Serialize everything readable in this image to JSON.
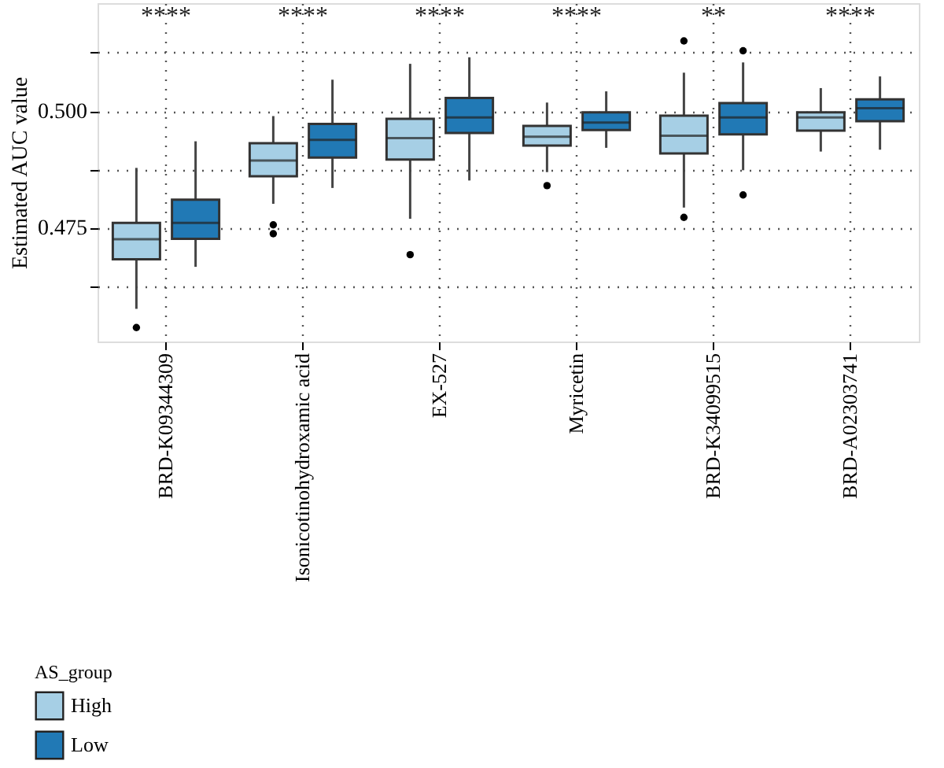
{
  "chart_data": {
    "type": "box",
    "ylabel": "Estimated AUC value",
    "legend_title": "AS_group",
    "categories": [
      "BRD-K09344309",
      "Isonicotinohydroxamic acid",
      "EX-527",
      "Myricetin",
      "BRD-K34099515",
      "BRD-A02303741"
    ],
    "series": [
      {
        "name": "High",
        "color": "#a6cfe5",
        "boxes": [
          {
            "low": 0.4576,
            "q1": 0.4682,
            "median": 0.4725,
            "q3": 0.476,
            "high": 0.4878,
            "outliers": [
              0.4536
            ]
          },
          {
            "low": 0.4801,
            "q1": 0.486,
            "median": 0.4894,
            "q3": 0.4931,
            "high": 0.4989,
            "outliers": [
              0.4756,
              0.4737
            ]
          },
          {
            "low": 0.4769,
            "q1": 0.4896,
            "median": 0.4942,
            "q3": 0.4983,
            "high": 0.5101,
            "outliers": [
              0.4692
            ]
          },
          {
            "low": 0.4869,
            "q1": 0.4926,
            "median": 0.4945,
            "q3": 0.4968,
            "high": 0.5018,
            "outliers": [
              0.484
            ]
          },
          {
            "low": 0.4793,
            "q1": 0.4909,
            "median": 0.4947,
            "q3": 0.499,
            "high": 0.5082,
            "outliers": [
              0.515,
              0.4772
            ]
          },
          {
            "low": 0.4913,
            "q1": 0.4958,
            "median": 0.4986,
            "q3": 0.4997,
            "high": 0.5049
          }
        ]
      },
      {
        "name": "Low",
        "color": "#2179b5",
        "boxes": [
          {
            "low": 0.4666,
            "q1": 0.4726,
            "median": 0.476,
            "q3": 0.481,
            "high": 0.4935
          },
          {
            "low": 0.4835,
            "q1": 0.49,
            "median": 0.4938,
            "q3": 0.4972,
            "high": 0.5067
          },
          {
            "low": 0.4851,
            "q1": 0.4953,
            "median": 0.4986,
            "q3": 0.5028,
            "high": 0.5115
          },
          {
            "low": 0.4921,
            "q1": 0.4959,
            "median": 0.4975,
            "q3": 0.4997,
            "high": 0.5042
          },
          {
            "low": 0.4873,
            "q1": 0.495,
            "median": 0.4986,
            "q3": 0.5017,
            "high": 0.5104,
            "outliers": [
              0.5129,
              0.482
            ]
          },
          {
            "low": 0.4917,
            "q1": 0.4978,
            "median": 0.5006,
            "q3": 0.5025,
            "high": 0.5074
          }
        ]
      }
    ],
    "ylim": [
      0.4506,
      0.5231
    ],
    "yticks": [
      {
        "value": 0.4625,
        "label": null
      },
      0.475,
      {
        "value": 0.4875,
        "label": null
      },
      {
        "value": 0.5,
        "label": "0.500"
      },
      {
        "value": 0.5125,
        "label": null
      }
    ],
    "grid": true,
    "legend": "bottom left",
    "annotations": [
      "****",
      "****",
      "****",
      "****",
      "**",
      "****"
    ]
  }
}
